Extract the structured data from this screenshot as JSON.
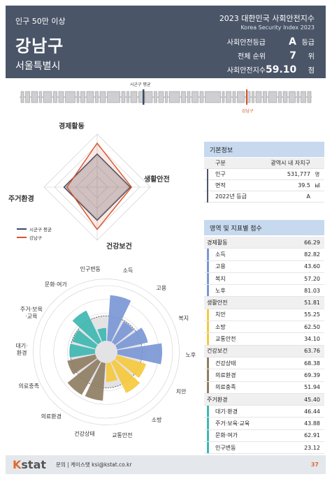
{
  "header": {
    "population_group": "인구 50만 이상",
    "region": "강남구",
    "province": "서울특별시",
    "index_title": "2023 대한민국 사회안전지수",
    "index_subtitle": "Korea Security Index 2023",
    "grade_label": "사회안전등급",
    "grade_value": "A",
    "grade_unit": "등급",
    "rank_label": "전체 순위",
    "rank_value": "7",
    "rank_unit": "위",
    "score_label": "사회안전지수",
    "score_value": "59.10",
    "score_unit": "점"
  },
  "rank_chart": {
    "avg_label": "시군구 평균",
    "self_label": "강남구",
    "avg_color": "#3a4a63",
    "self_color": "#d9532c"
  },
  "chart_data": [
    {
      "type": "radar",
      "axes": [
        "경제활동",
        "생활안전",
        "건강보건",
        "주거환경"
      ],
      "series": [
        {
          "name": "시군구 평균",
          "color": "#3a4a63",
          "values": [
            50,
            50,
            50,
            50
          ]
        },
        {
          "name": "강남구",
          "color": "#d9532c",
          "values": [
            66.29,
            51.81,
            63.76,
            45.4
          ]
        }
      ],
      "ylim": [
        0,
        80
      ]
    },
    {
      "type": "polar-bar",
      "categories": [
        "소득",
        "고용",
        "복지",
        "노후",
        "치안",
        "소방",
        "교통안전",
        "건강상태",
        "의료환경",
        "의료충족",
        "대기·환경",
        "주거·보육·교육",
        "문화·여가",
        "인구변동"
      ],
      "values": [
        82.82,
        43.6,
        57.2,
        81.03,
        55.25,
        62.5,
        34.1,
        68.38,
        69.39,
        51.94,
        46.44,
        43.88,
        62.91,
        23.12
      ],
      "colors": [
        "#7b97d6",
        "#7b97d6",
        "#7b97d6",
        "#7b97d6",
        "#f5c93e",
        "#f5c93e",
        "#f5c93e",
        "#8f7e63",
        "#8f7e63",
        "#8f7e63",
        "#3fb7b2",
        "#3fb7b2",
        "#3fb7b2",
        "#3fb7b2"
      ],
      "ylim": [
        0,
        100
      ]
    }
  ],
  "basic_info": {
    "title": "기본정보",
    "rows": [
      {
        "k": "구분",
        "v": "광역시 내 자치구",
        "u": ""
      },
      {
        "k": "인구",
        "v": "531,777",
        "u": "명"
      },
      {
        "k": "면적",
        "v": "39.5",
        "u": "㎢"
      },
      {
        "k": "2022년 등급",
        "v": "A",
        "u": ""
      }
    ]
  },
  "scores": {
    "title": "영역 및 지표별 점수",
    "domains": [
      {
        "name": "경제활동",
        "score": "66.29",
        "color": "#7b97d6",
        "items": [
          {
            "name": "소득",
            "score": "82.82"
          },
          {
            "name": "고용",
            "score": "43.60"
          },
          {
            "name": "복지",
            "score": "57.20"
          },
          {
            "name": "노후",
            "score": "81.03"
          }
        ]
      },
      {
        "name": "생활안전",
        "score": "51.81",
        "color": "#f5c93e",
        "items": [
          {
            "name": "치안",
            "score": "55.25"
          },
          {
            "name": "소방",
            "score": "62.50"
          },
          {
            "name": "교통안전",
            "score": "34.10"
          }
        ]
      },
      {
        "name": "건강보건",
        "score": "63.76",
        "color": "#8f7e63",
        "items": [
          {
            "name": "건강상태",
            "score": "68.38"
          },
          {
            "name": "의료환경",
            "score": "69.39"
          },
          {
            "name": "의료충족",
            "score": "51.94"
          }
        ]
      },
      {
        "name": "주거환경",
        "score": "45.40",
        "color": "#3fb7b2",
        "items": [
          {
            "name": "대기·환경",
            "score": "46.44"
          },
          {
            "name": "주거·보육·교육",
            "score": "43.88"
          },
          {
            "name": "문화·여가",
            "score": "62.91"
          },
          {
            "name": "인구변동",
            "score": "23.12"
          }
        ]
      }
    ]
  },
  "footer": {
    "logo_k": "K",
    "logo_rest": "stat",
    "contact": "문의 | 케이스탯 ksi@kstat.co.kr",
    "page": "37"
  }
}
